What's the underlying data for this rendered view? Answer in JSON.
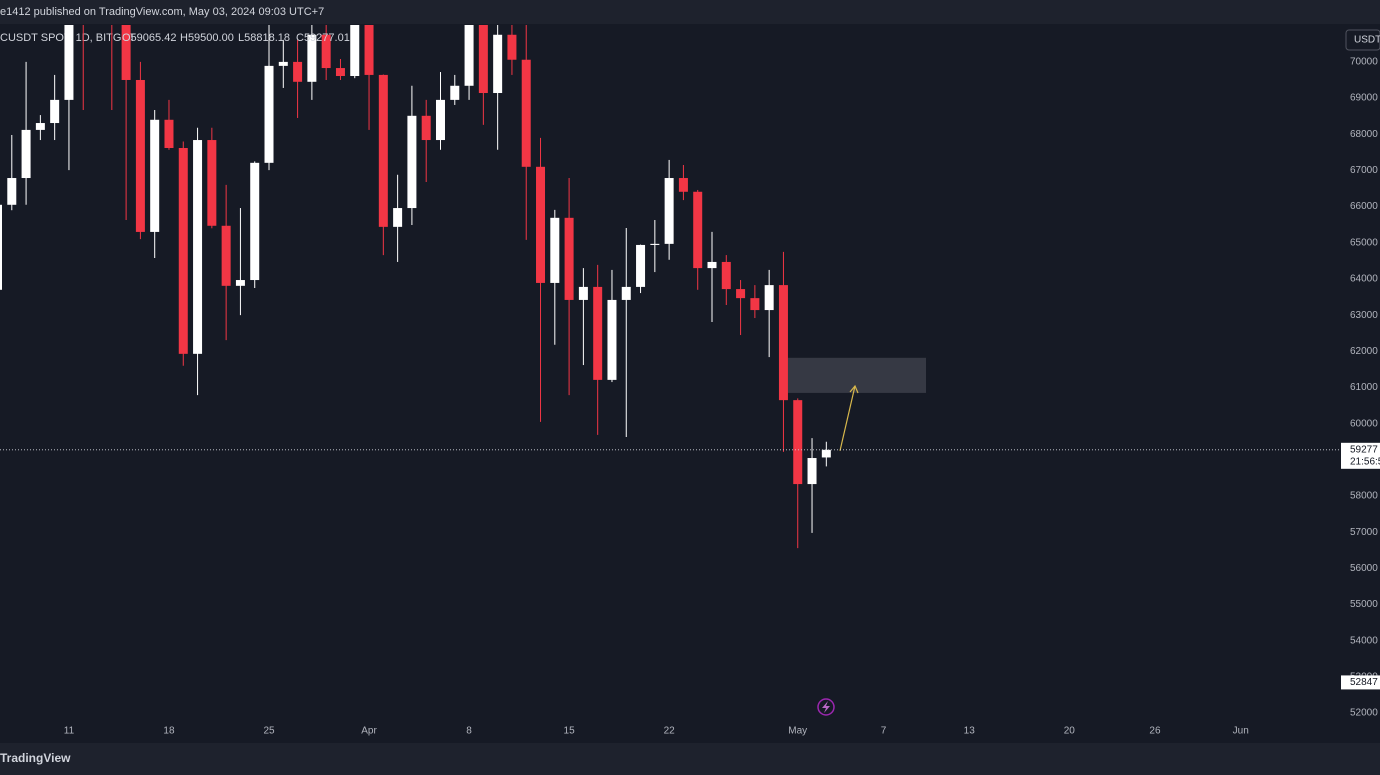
{
  "chart_data": {
    "type": "candlestick",
    "header": "e1412 published on TradingView.com, May 03, 2024 09:03 UTC+7",
    "legend": {
      "symbol": "CUSDT SPOT, 1D, BITGET",
      "values": [
        "O59065.42",
        "H59500.00",
        "L58818.18",
        "C59277.01"
      ]
    },
    "axis_unit": "USDT",
    "brand": "TradingView",
    "up_color": "#ffffff",
    "down_color": "#f23645",
    "categories": [
      null,
      null,
      null,
      null,
      null,
      "11",
      null,
      null,
      null,
      null,
      null,
      null,
      "18",
      null,
      null,
      null,
      null,
      null,
      null,
      "25",
      null,
      null,
      null,
      null,
      null,
      null,
      "Apr",
      null,
      null,
      null,
      null,
      null,
      null,
      "8",
      null,
      null,
      null,
      null,
      null,
      null,
      "15",
      null,
      null,
      null,
      null,
      null,
      null,
      "22",
      null,
      null,
      null,
      null,
      null,
      null,
      null,
      null,
      "May",
      null,
      null,
      null,
      null,
      null,
      "7",
      null,
      null,
      null,
      null,
      null,
      "13",
      null,
      null,
      null,
      null,
      null,
      null,
      "20",
      null,
      null,
      null,
      null,
      null,
      "26",
      null,
      null,
      null,
      null,
      null,
      "Jun"
    ],
    "open": [
      63700,
      66050,
      66790,
      68120,
      68310,
      68950,
      72100,
      71450,
      73050,
      71380,
      69500,
      65300,
      68400,
      67620,
      61930,
      67840,
      65470,
      63810,
      63970,
      67210,
      69890,
      70000,
      69450,
      70750,
      69830,
      69610,
      71280,
      69640,
      65440,
      65960,
      68510,
      67840,
      68950,
      69340,
      71600,
      69140,
      70750,
      70060,
      67100,
      63890,
      65690,
      63420,
      63780,
      61210,
      63420,
      63780,
      64940,
      64970,
      66790,
      66410,
      64300,
      64470,
      63720,
      63470,
      63140,
      63830,
      60650,
      58330,
      59065.42,
      null,
      null,
      null,
      null,
      null,
      null,
      null,
      null,
      null,
      null,
      null,
      null,
      null,
      null,
      null,
      null,
      null,
      null,
      null,
      null,
      null,
      null,
      null,
      null,
      null,
      null,
      null,
      null,
      null
    ],
    "high": [
      66460,
      67980,
      70000,
      68530,
      69640,
      72800,
      73000,
      73600,
      73700,
      71800,
      70000,
      68670,
      68950,
      67800,
      68180,
      68180,
      66600,
      65960,
      67250,
      71020,
      70610,
      70610,
      71020,
      71020,
      70080,
      71350,
      71400,
      69650,
      66880,
      69340,
      68950,
      69720,
      69640,
      72700,
      71700,
      71150,
      71020,
      71200,
      67900,
      65910,
      66790,
      64300,
      64390,
      64250,
      65410,
      64950,
      65630,
      67290,
      67150,
      66460,
      65300,
      64660,
      63970,
      63830,
      64250,
      64750,
      60700,
      59600,
      59500,
      null,
      null,
      null,
      null,
      null,
      null,
      null,
      null,
      null,
      null,
      null,
      null,
      null,
      null,
      null,
      null,
      null,
      null,
      null,
      null,
      null,
      null,
      null,
      null,
      null,
      null,
      null,
      null,
      null
    ],
    "low": [
      62870,
      65900,
      66050,
      67840,
      67840,
      67010,
      68670,
      71300,
      68670,
      65630,
      65100,
      64580,
      67570,
      61600,
      60790,
      65400,
      62310,
      63000,
      63750,
      67010,
      69280,
      68450,
      68950,
      69500,
      69500,
      69550,
      68120,
      64660,
      64470,
      65490,
      66680,
      67570,
      68810,
      68950,
      68260,
      67570,
      69640,
      65080,
      60050,
      62180,
      60790,
      61620,
      59690,
      61150,
      59630,
      63610,
      64190,
      64530,
      66180,
      63700,
      62810,
      63280,
      62450,
      62920,
      61840,
      59220,
      56560,
      56980,
      58818.18,
      null,
      null,
      null,
      null,
      null,
      null,
      null,
      null,
      null,
      null,
      null,
      null,
      null,
      null,
      null,
      null,
      null,
      null,
      null,
      null,
      null,
      null,
      null,
      null,
      null,
      null,
      null,
      null,
      null
    ],
    "close": [
      66050,
      66790,
      68120,
      68310,
      68950,
      72100,
      71450,
      73050,
      71380,
      69500,
      65300,
      68400,
      67620,
      61930,
      67840,
      65470,
      63810,
      63970,
      67210,
      69890,
      70000,
      69450,
      70750,
      69830,
      69610,
      71280,
      69640,
      65440,
      65960,
      68510,
      67840,
      68950,
      69340,
      71600,
      69140,
      70750,
      70060,
      67100,
      63890,
      65690,
      63420,
      63780,
      61210,
      63420,
      63780,
      64940,
      64970,
      66790,
      66410,
      64300,
      64470,
      63720,
      63470,
      63140,
      63830,
      60650,
      58330,
      59050,
      59277.01,
      null,
      null,
      null,
      null,
      null,
      null,
      null,
      null,
      null,
      null,
      null,
      null,
      null,
      null,
      null,
      null,
      null,
      null,
      null,
      null,
      null,
      null,
      null,
      null,
      null,
      null,
      null,
      null,
      null
    ],
    "ylim": [
      51200,
      71020
    ],
    "yticks": [
      52000,
      53000,
      54000,
      55000,
      56000,
      57000,
      58000,
      59000,
      60000,
      61000,
      62000,
      63000,
      64000,
      65000,
      66000,
      67000,
      68000,
      69000,
      70000
    ],
    "grid": false,
    "last_price": {
      "value": 59277.01,
      "label": "59277",
      "countdown": "21:56:5"
    },
    "marker_price": {
      "value": 52847,
      "label": "52847"
    },
    "zone": {
      "low": 60850,
      "high": 61820
    },
    "arrow": {
      "from": 59250,
      "to": 61040,
      "color": "#d8b84c"
    }
  }
}
